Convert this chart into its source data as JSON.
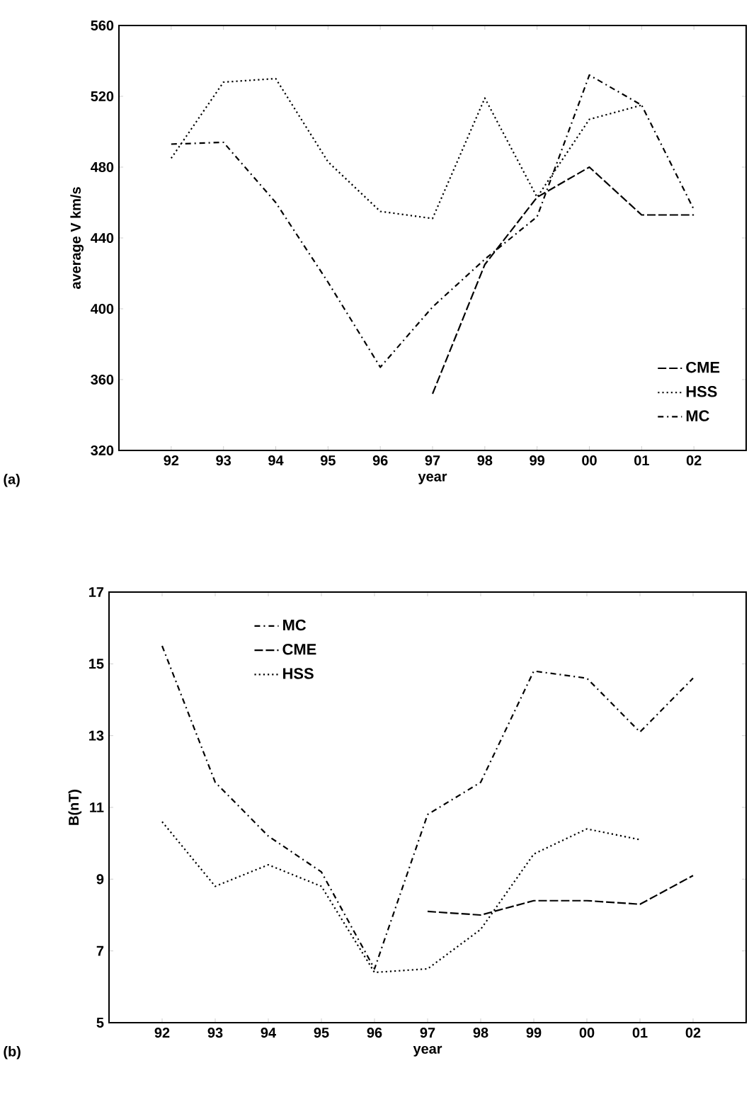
{
  "chart_data": [
    {
      "type": "line",
      "xlabel": "year",
      "ylabel": "average V km/s",
      "categories": [
        "92",
        "93",
        "94",
        "95",
        "96",
        "97",
        "98",
        "99",
        "00",
        "01",
        "02"
      ],
      "series": [
        {
          "name": "CME",
          "color": "#000000",
          "line_style": "dashed",
          "values": [
            null,
            null,
            null,
            null,
            null,
            352,
            425,
            463,
            480,
            453,
            453
          ]
        },
        {
          "name": "HSS",
          "color": "#000000",
          "line_style": "dotted",
          "values": [
            485,
            528,
            530,
            483,
            455,
            451,
            519,
            463,
            507,
            515,
            null
          ]
        },
        {
          "name": "MC",
          "color": "#000000",
          "line_style": "dashdot",
          "values": [
            493,
            494,
            460,
            415,
            367,
            401,
            428,
            452,
            532,
            515,
            456
          ]
        }
      ],
      "ylim": [
        320,
        560
      ],
      "yticks": [
        320,
        360,
        400,
        440,
        480,
        520,
        560
      ],
      "legend": "bottom right",
      "grid": false,
      "annotations": [
        "(a)"
      ]
    },
    {
      "type": "line",
      "xlabel": "year",
      "ylabel": "B(nT)",
      "categories": [
        "92",
        "93",
        "94",
        "95",
        "96",
        "97",
        "98",
        "99",
        "00",
        "01",
        "02"
      ],
      "series": [
        {
          "name": "MC",
          "color": "#000000",
          "line_style": "dashdot",
          "values": [
            15.5,
            11.7,
            10.2,
            9.2,
            6.5,
            10.8,
            11.7,
            14.8,
            14.6,
            13.1,
            14.6
          ]
        },
        {
          "name": "CME",
          "color": "#000000",
          "line_style": "dashed",
          "values": [
            null,
            null,
            null,
            null,
            null,
            8.1,
            8.0,
            8.4,
            8.4,
            8.3,
            9.1
          ]
        },
        {
          "name": "HSS",
          "color": "#000000",
          "line_style": "dotted",
          "values": [
            10.6,
            8.8,
            9.4,
            8.8,
            6.4,
            6.5,
            7.6,
            9.7,
            10.4,
            10.1,
            null
          ]
        }
      ],
      "ylim": [
        5,
        17
      ],
      "yticks": [
        5,
        7,
        9,
        11,
        13,
        15,
        17
      ],
      "legend": "top left",
      "grid": false,
      "annotations": [
        "(b)"
      ]
    }
  ]
}
